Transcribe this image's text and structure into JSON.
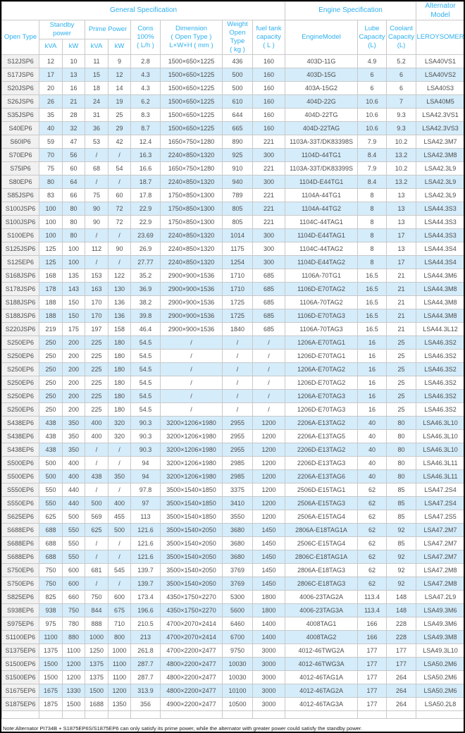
{
  "colors": {
    "header_text": "#2fb0ee",
    "link_text": "#2fb0ee",
    "row_stripe": "#d5ecfa",
    "first_column_bg": "#f1f1f1",
    "border": "#c9c9c9",
    "body_text": "#4d4d4d",
    "frame_border": "#000000"
  },
  "note": "Note:Alternator PI734B + S1875EP6S/S1875EP6 can only satisfy its prime power, while the alternator with greater power could satisfy the standby power.",
  "table": {
    "header": {
      "general_spec": "General Specification",
      "engine_spec": "Engine Specification",
      "alternator_model": "Alternator Model",
      "open_type": "Open Type",
      "standby_power": "Standby\npower",
      "prime_power": "Prime Power",
      "standby_kva": "kVA",
      "standby_kw": "kW",
      "prime_kva": "kVA",
      "prime_kw": "kW",
      "cons": "Cons\n100%\n( L/h )",
      "dimension": "Dimension\n( Open Type )\nL×W×H ( mm )",
      "weight": "Weight\nOpen Type\n( kg )",
      "fuel_tank": "fuel tank\ncapacity\n( L )",
      "engine_model": "EngineModel",
      "lube": "Lube\nCapacity\n(L)",
      "coolant": "Coolant\nCapacity\n(L)",
      "leroysomer": "LEROYSOMER"
    },
    "rows": [
      [
        "S12JSP6",
        "12",
        "10",
        "11",
        "9",
        "2.8",
        "1500×650×1225",
        "436",
        "160",
        "403D-11G",
        "4.9",
        "5.2",
        "LSA40VS1"
      ],
      [
        "S17JSP6",
        "17",
        "13",
        "15",
        "12",
        "4.3",
        "1500×650×1225",
        "500",
        "160",
        "403D-15G",
        "6",
        "6",
        "LSA40VS2"
      ],
      [
        "S20JSP6",
        "20",
        "16",
        "18",
        "14",
        "4.3",
        "1500×650×1225",
        "500",
        "160",
        "403A-15G2",
        "6",
        "6",
        "LSA40S3"
      ],
      [
        "S26JSP6",
        "26",
        "21",
        "24",
        "19",
        "6.2",
        "1500×650×1225",
        "610",
        "160",
        "404D-22G",
        "10.6",
        "7",
        "LSA40M5"
      ],
      [
        "S35JSP6",
        "35",
        "28",
        "31",
        "25",
        "8.3",
        "1500×650×1225",
        "644",
        "160",
        "404D-22TG",
        "10.6",
        "9.3",
        "LSA42.3VS1"
      ],
      [
        "S40EP6",
        "40",
        "32",
        "36",
        "29",
        "8.7",
        "1500×650×1225",
        "665",
        "160",
        "404D-22TAG",
        "10.6",
        "9.3",
        "LSA42.3VS3"
      ],
      [
        "S60IP6",
        "59",
        "47",
        "53",
        "42",
        "12.4",
        "1650×750×1280",
        "890",
        "221",
        "1103A-33T/DK83398S",
        "7.9",
        "10.2",
        "LSA42.3M7"
      ],
      [
        "S70EP6",
        "70",
        "56",
        "/",
        "/",
        "16.3",
        "2240×850×1320",
        "925",
        "300",
        "1104D-44TG1",
        "8.4",
        "13.2",
        "LSA42.3M8"
      ],
      [
        "S75IP6",
        "75",
        "60",
        "68",
        "54",
        "16.6",
        "1650×750×1280",
        "910",
        "221",
        "1103A-33T/DK83399S",
        "7.9",
        "10.2",
        "LSA42.3L9"
      ],
      [
        "S80EP6",
        "80",
        "64",
        "/",
        "/",
        "18.7",
        "2240×850×1320",
        "940",
        "300",
        "1104D-E44TG1",
        "8.4",
        "13.2",
        "LSA42.3L9"
      ],
      [
        "S85JSP6",
        "83",
        "66",
        "75",
        "60",
        "17.8",
        "1750×850×1300",
        "789",
        "221",
        "1104A-44TG1",
        "8",
        "13",
        "LSA42.3L9"
      ],
      [
        "S100JSP6",
        "100",
        "80",
        "90",
        "72",
        "22.9",
        "1750×850×1300",
        "805",
        "221",
        "1104A-44TG2",
        "8",
        "13",
        "LSA44.3S3"
      ],
      [
        "S100JSP6",
        "100",
        "80",
        "90",
        "72",
        "22.9",
        "1750×850×1300",
        "805",
        "221",
        "1104C-44TAG1",
        "8",
        "13",
        "LSA44.3S3"
      ],
      [
        "S100EP6",
        "100",
        "80",
        "/",
        "/",
        "23.69",
        "2240×850×1320",
        "1014",
        "300",
        "1104D-E44TAG1",
        "8",
        "17",
        "LSA44.3S3"
      ],
      [
        "S125JSP6",
        "125",
        "100",
        "112",
        "90",
        "26.9",
        "2240×850×1320",
        "1175",
        "300",
        "1104C-44TAG2",
        "8",
        "13",
        "LSA44.3S4"
      ],
      [
        "S125EP6",
        "125",
        "100",
        "/",
        "/",
        "27.77",
        "2240×850×1320",
        "1254",
        "300",
        "1104D-E44TAG2",
        "8",
        "17",
        "LSA44.3S4"
      ],
      [
        "S168JSP6",
        "168",
        "135",
        "153",
        "122",
        "35.2",
        "2900×900×1536",
        "1710",
        "685",
        "1106A-70TG1",
        "16.5",
        "21",
        "LSA44.3M6"
      ],
      [
        "S178JSP6",
        "178",
        "143",
        "163",
        "130",
        "36.9",
        "2900×900×1536",
        "1710",
        "685",
        "1106D-E70TAG2",
        "16.5",
        "21",
        "LSA44.3M8"
      ],
      [
        "S188JSP6",
        "188",
        "150",
        "170",
        "136",
        "38.2",
        "2900×900×1536",
        "1725",
        "685",
        "1106A-70TAG2",
        "16.5",
        "21",
        "LSA44.3M8"
      ],
      [
        "S188JSP6",
        "188",
        "150",
        "170",
        "136",
        "39.8",
        "2900×900×1536",
        "1725",
        "685",
        "1106D-E70TAG3",
        "16.5",
        "21",
        "LSA44.3M8"
      ],
      [
        "S220JSP6",
        "219",
        "175",
        "197",
        "158",
        "46.4",
        "2900×900×1536",
        "1840",
        "685",
        "1106A-70TAG3",
        "16.5",
        "21",
        "LSA44.3L12"
      ],
      [
        "S250EP6",
        "250",
        "200",
        "225",
        "180",
        "54.5",
        "/",
        "/",
        "/",
        "1206A-E70TAG1",
        "16",
        "25",
        "LSA46.3S2"
      ],
      [
        "S250EP6",
        "250",
        "200",
        "225",
        "180",
        "54.5",
        "/",
        "/",
        "/",
        "1206D-E70TAG1",
        "16",
        "25",
        "LSA46.3S2"
      ],
      [
        "S250EP6",
        "250",
        "200",
        "225",
        "180",
        "54.5",
        "/",
        "/",
        "/",
        "1206A-E70TAG2",
        "16",
        "25",
        "LSA46.3S2"
      ],
      [
        "S250EP6",
        "250",
        "200",
        "225",
        "180",
        "54.5",
        "/",
        "/",
        "/",
        "1206D-E70TAG2",
        "16",
        "25",
        "LSA46.3S2"
      ],
      [
        "S250EP6",
        "250",
        "200",
        "225",
        "180",
        "54.5",
        "/",
        "/",
        "/",
        "1206A-E70TAG3",
        "16",
        "25",
        "LSA46.3S2"
      ],
      [
        "S250EP6",
        "250",
        "200",
        "225",
        "180",
        "54.5",
        "/",
        "/",
        "/",
        "1206D-E70TAG3",
        "16",
        "25",
        "LSA46.3S2"
      ],
      [
        "S438EP6",
        "438",
        "350",
        "400",
        "320",
        "90.3",
        "3200×1206×1980",
        "2955",
        "1200",
        "2206A-E13TAG2",
        "40",
        "80",
        "LSA46.3L10"
      ],
      [
        "S438EP6",
        "438",
        "350",
        "400",
        "320",
        "90.3",
        "3200×1206×1980",
        "2955",
        "1200",
        "2206A-E13TAG5",
        "40",
        "80",
        "LSA46.3L10"
      ],
      [
        "S438EP6",
        "438",
        "350",
        "/",
        "/",
        "90.3",
        "3200×1206×1980",
        "2955",
        "1200",
        "2206D-E13TAG2",
        "40",
        "80",
        "LSA46.3L10"
      ],
      [
        "S500EP6",
        "500",
        "400",
        "/",
        "/",
        "94",
        "3200×1206×1980",
        "2985",
        "1200",
        "2206D-E13TAG3",
        "40",
        "80",
        "LSA46.3L11"
      ],
      [
        "S500EP6",
        "500",
        "400",
        "438",
        "350",
        "94",
        "3200×1206×1980",
        "2985",
        "1200",
        "2206A-E13TAG6",
        "40",
        "80",
        "LSA46.3L11"
      ],
      [
        "S550EP6",
        "550",
        "440",
        "/",
        "/",
        "97.8",
        "3500×1540×1850",
        "3375",
        "1200",
        "2506D-E15TAG1",
        "62",
        "85",
        "LSA47.2S4"
      ],
      [
        "S550EP6",
        "550",
        "440",
        "500",
        "400",
        "97",
        "3500×1540×1850",
        "3410",
        "1200",
        "2506A-E15TAG3",
        "62",
        "85",
        "LSA47.2S4"
      ],
      [
        "S625EP6",
        "625",
        "500",
        "569",
        "455",
        "113",
        "3500×1540×1850",
        "3550",
        "1200",
        "2506A-E15TAG4",
        "62",
        "85",
        "LSA47.2S5"
      ],
      [
        "S688EP6",
        "688",
        "550",
        "625",
        "500",
        "121.6",
        "3500×1540×2050",
        "3680",
        "1450",
        "2806A-E18TAG1A",
        "62",
        "92",
        "LSA47.2M7"
      ],
      [
        "S688EP6",
        "688",
        "550",
        "/",
        "/",
        "121.6",
        "3500×1540×2050",
        "3680",
        "1450",
        "2506C-E15TAG4",
        "62",
        "85",
        "LSA47.2M7"
      ],
      [
        "S688EP6",
        "688",
        "550",
        "/",
        "/",
        "121.6",
        "3500×1540×2050",
        "3680",
        "1450",
        "2806C-E18TAG1A",
        "62",
        "92",
        "LSA47.2M7"
      ],
      [
        "S750EP6",
        "750",
        "600",
        "681",
        "545",
        "139.7",
        "3500×1540×2050",
        "3769",
        "1450",
        "2806A-E18TAG3",
        "62",
        "92",
        "LSA47.2M8"
      ],
      [
        "S750EP6",
        "750",
        "600",
        "/",
        "/",
        "139.7",
        "3500×1540×2050",
        "3769",
        "1450",
        "2806C-E18TAG3",
        "62",
        "92",
        "LSA47.2M8"
      ],
      [
        "S825EP6",
        "825",
        "660",
        "750",
        "600",
        "173.4",
        "4350×1750×2270",
        "5300",
        "1800",
        "4006-23TAG2A",
        "113.4",
        "148",
        "LSA47.2L9"
      ],
      [
        "S938EP6",
        "938",
        "750",
        "844",
        "675",
        "196.6",
        "4350×1750×2270",
        "5600",
        "1800",
        "4006-23TAG3A",
        "113.4",
        "148",
        "LSA49.3M6"
      ],
      [
        "S975EP6",
        "975",
        "780",
        "888",
        "710",
        "210.5",
        "4700×2070×2414",
        "6460",
        "1400",
        "4008TAG1",
        "166",
        "228",
        "LSA49.3M6"
      ],
      [
        "S1100EP6",
        "1100",
        "880",
        "1000",
        "800",
        "213",
        "4700×2070×2414",
        "6700",
        "1400",
        "4008TAG2",
        "166",
        "228",
        "LSA49.3M8"
      ],
      [
        "S1375EP6",
        "1375",
        "1100",
        "1250",
        "1000",
        "261.8",
        "4700×2200×2477",
        "9750",
        "3000",
        "4012-46TWG2A",
        "177",
        "177",
        "LSA49.3L10"
      ],
      [
        "S1500EP6",
        "1500",
        "1200",
        "1375",
        "1100",
        "287.7",
        "4800×2200×2477",
        "10030",
        "3000",
        "4012-46TWG3A",
        "177",
        "177",
        "LSA50.2M6"
      ],
      [
        "S1500EP6",
        "1500",
        "1200",
        "1375",
        "1100",
        "287.7",
        "4800×2200×2477",
        "10030",
        "3000",
        "4012-46TAG1A",
        "177",
        "264",
        "LSA50.2M6"
      ],
      [
        "S1675EP6",
        "1675",
        "1330",
        "1500",
        "1200",
        "313.9",
        "4800×2200×2477",
        "10100",
        "3000",
        "4012-46TAG2A",
        "177",
        "264",
        "LSA50.2M6"
      ],
      [
        "S1875EP6",
        "1875",
        "1500",
        "1688",
        "1350",
        "356",
        "4900×2200×2477",
        "10500",
        "3000",
        "4012-46TAG3A",
        "177",
        "264",
        "LSA50.2L8"
      ]
    ]
  }
}
